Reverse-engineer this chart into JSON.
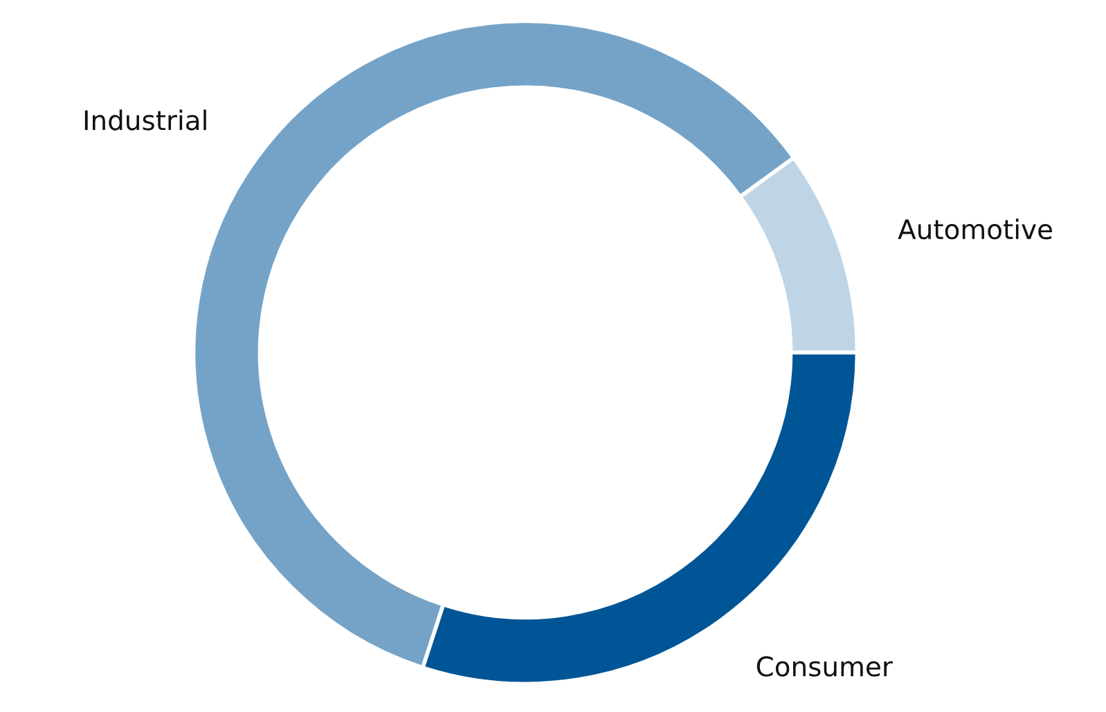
{
  "chart_data": {
    "type": "donut",
    "categories": [
      "Automotive",
      "Industrial",
      "Consumer"
    ],
    "values": [
      10,
      60,
      30
    ],
    "colors": [
      "#bfd5e6",
      "#75a3c7",
      "#005596"
    ]
  }
}
